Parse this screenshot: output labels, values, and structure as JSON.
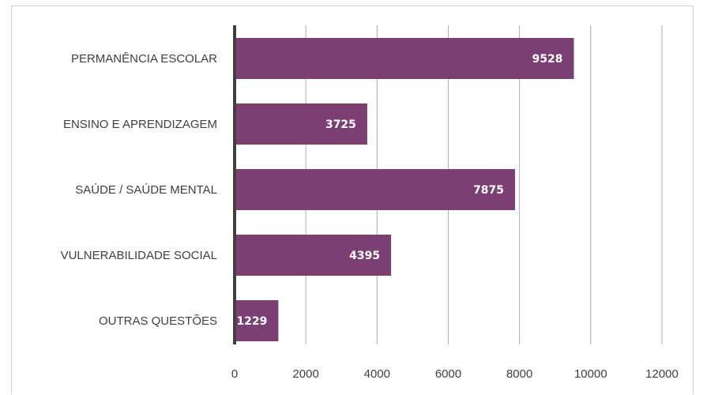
{
  "chart_data": {
    "type": "bar",
    "orientation": "horizontal",
    "categories": [
      "PERMANÊNCIA ESCOLAR",
      "ENSINO E APRENDIZAGEM",
      "SAÚDE / SAÚDE MENTAL",
      "VULNERABILIDADE SOCIAL",
      "OUTRAS QUESTÕES"
    ],
    "values": [
      9528,
      3725,
      7875,
      4395,
      1229
    ],
    "data_labels": [
      "9528",
      "3725",
      "7875",
      "4395",
      "1229"
    ],
    "xlim": [
      0,
      12000
    ],
    "xticks": [
      0,
      2000,
      4000,
      6000,
      8000,
      10000,
      12000
    ],
    "xtick_labels": [
      "0",
      "2000",
      "4000",
      "6000",
      "8000",
      "10000",
      "12000"
    ],
    "title": "",
    "xlabel": "",
    "ylabel": "",
    "grid": "vertical",
    "legend": "none",
    "bar_color": "#7b3f73",
    "gridline_color": "#b0b0b0",
    "axis_color": "#404040"
  }
}
